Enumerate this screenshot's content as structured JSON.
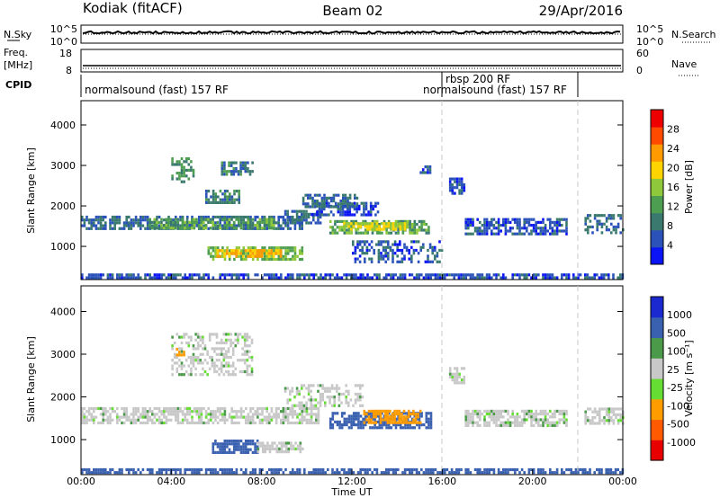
{
  "header": {
    "radar": "Kodiak (fitACF)",
    "beam": "Beam 02",
    "date": "29/Apr/2016"
  },
  "noise_panel": {
    "left_label": "N.Sky",
    "right_label": "N.Search",
    "left_ticks": [
      "10^5",
      "10^0"
    ],
    "right_ticks": [
      "10^5",
      "10^0"
    ]
  },
  "freq_panel": {
    "left_label_1": "Freq.",
    "left_label_2": "[MHz]",
    "right_label": "Nave",
    "left_ticks": [
      "18",
      "8"
    ],
    "right_ticks": [
      "60",
      "0"
    ]
  },
  "cpid": {
    "label": "CPID",
    "segments": [
      {
        "text": "normalsound (fast) 157 RF",
        "start_hour": 0
      },
      {
        "text": "rbsp 200 RF",
        "start_hour": 16
      },
      {
        "text": "normalsound (fast) 157 RF",
        "start_hour": 16
      }
    ],
    "boundaries_hours": [
      16,
      22
    ]
  },
  "power_colorbar": {
    "label": "Power [dB]",
    "ticks": [
      "28",
      "24",
      "20",
      "16",
      "12",
      "8",
      "4"
    ]
  },
  "velocity_colorbar": {
    "label": "Velocity [m s⁻¹]",
    "ticks": [
      "1000",
      "500",
      "100",
      "25",
      "-25",
      "-100",
      "-500",
      "-1000"
    ]
  },
  "colors": {
    "power_scale": [
      "#0a14f5",
      "#2a52b8",
      "#3a7a6e",
      "#4e9e52",
      "#8fc83a",
      "#ffd400",
      "#ff9a00",
      "#ff4a00",
      "#ee0000"
    ],
    "velocity_scale": [
      "#e80000",
      "#ff5a00",
      "#ff9c00",
      "#66dd33",
      "#c8c8c8",
      "#4a9a4a",
      "#3a60b0",
      "#1a2ad0"
    ],
    "axis": "#000000"
  },
  "chart_data": {
    "type": "heatmap",
    "x": {
      "label": "Time UT",
      "ticks": [
        "00:00",
        "04:00",
        "08:00",
        "12:00",
        "16:00",
        "20:00",
        "00:00"
      ],
      "range_hours": [
        0,
        24
      ]
    },
    "y": {
      "label": "Slant Range [km]",
      "ticks": [
        1000,
        2000,
        3000,
        4000
      ],
      "range_km": [
        180,
        4600
      ]
    },
    "panels": [
      {
        "name": "Power",
        "features": [
          {
            "t0": 0.0,
            "t1": 9.8,
            "r0": 1420,
            "r1": 1760,
            "value": 8
          },
          {
            "t0": 3.0,
            "t1": 8.5,
            "r0": 1480,
            "r1": 1700,
            "value": 14
          },
          {
            "t0": 9.0,
            "t1": 10.6,
            "r0": 1550,
            "r1": 1900,
            "value": 8
          },
          {
            "t0": 10.2,
            "t1": 13.2,
            "r0": 1800,
            "r1": 2100,
            "value": 6
          },
          {
            "t0": 9.8,
            "t1": 12.2,
            "r0": 2000,
            "r1": 2300,
            "value": 8
          },
          {
            "t0": 11.0,
            "t1": 15.4,
            "r0": 1300,
            "r1": 1650,
            "value": 14
          },
          {
            "t0": 11.5,
            "t1": 14.5,
            "r0": 1400,
            "r1": 1600,
            "value": 20
          },
          {
            "t0": 5.6,
            "t1": 9.8,
            "r0": 700,
            "r1": 1000,
            "value": 16
          },
          {
            "t0": 6.0,
            "t1": 8.8,
            "r0": 740,
            "r1": 930,
            "value": 24
          },
          {
            "t0": 4.0,
            "t1": 5.0,
            "r0": 2600,
            "r1": 3200,
            "value": 12
          },
          {
            "t0": 6.2,
            "t1": 7.6,
            "r0": 2800,
            "r1": 3100,
            "value": 10
          },
          {
            "t0": 5.5,
            "t1": 7.0,
            "r0": 2100,
            "r1": 2400,
            "value": 10
          },
          {
            "t0": 15.0,
            "t1": 15.5,
            "r0": 2800,
            "r1": 3000,
            "value": 6
          },
          {
            "t0": 16.3,
            "t1": 17.0,
            "r0": 2300,
            "r1": 2700,
            "value": 6
          },
          {
            "t0": 17.0,
            "t1": 21.5,
            "r0": 1300,
            "r1": 1700,
            "value": 6
          },
          {
            "t0": 22.3,
            "t1": 24.0,
            "r0": 1350,
            "r1": 1800,
            "value": 8
          },
          {
            "t0": 12.0,
            "t1": 16.0,
            "r0": 600,
            "r1": 1150,
            "value": 6
          },
          {
            "t0": 0.0,
            "t1": 24.0,
            "r0": 200,
            "r1": 330,
            "value": 6
          }
        ]
      },
      {
        "name": "Velocity",
        "features": [
          {
            "t0": 0.0,
            "t1": 10.5,
            "r0": 1420,
            "r1": 1760,
            "value": 0
          },
          {
            "t0": 9.0,
            "t1": 12.5,
            "r0": 1800,
            "r1": 2300,
            "value": 0
          },
          {
            "t0": 11.0,
            "t1": 15.5,
            "r0": 1300,
            "r1": 1650,
            "value": 150
          },
          {
            "t0": 12.5,
            "t1": 15.0,
            "r0": 1400,
            "r1": 1700,
            "value": -150
          },
          {
            "t0": 5.8,
            "t1": 7.8,
            "r0": 700,
            "r1": 1000,
            "value": 150
          },
          {
            "t0": 7.8,
            "t1": 9.8,
            "r0": 700,
            "r1": 950,
            "value": 0
          },
          {
            "t0": 4.0,
            "t1": 7.6,
            "r0": 2500,
            "r1": 3500,
            "value": 0
          },
          {
            "t0": 4.2,
            "t1": 4.6,
            "r0": 3000,
            "r1": 3150,
            "value": -150
          },
          {
            "t0": 16.3,
            "t1": 17.0,
            "r0": 2300,
            "r1": 2700,
            "value": 0
          },
          {
            "t0": 17.0,
            "t1": 21.5,
            "r0": 1300,
            "r1": 1700,
            "value": 0
          },
          {
            "t0": 22.3,
            "t1": 24.0,
            "r0": 1350,
            "r1": 1750,
            "value": 0
          },
          {
            "t0": 0.0,
            "t1": 24.0,
            "r0": 200,
            "r1": 330,
            "value": 150
          }
        ]
      }
    ]
  }
}
